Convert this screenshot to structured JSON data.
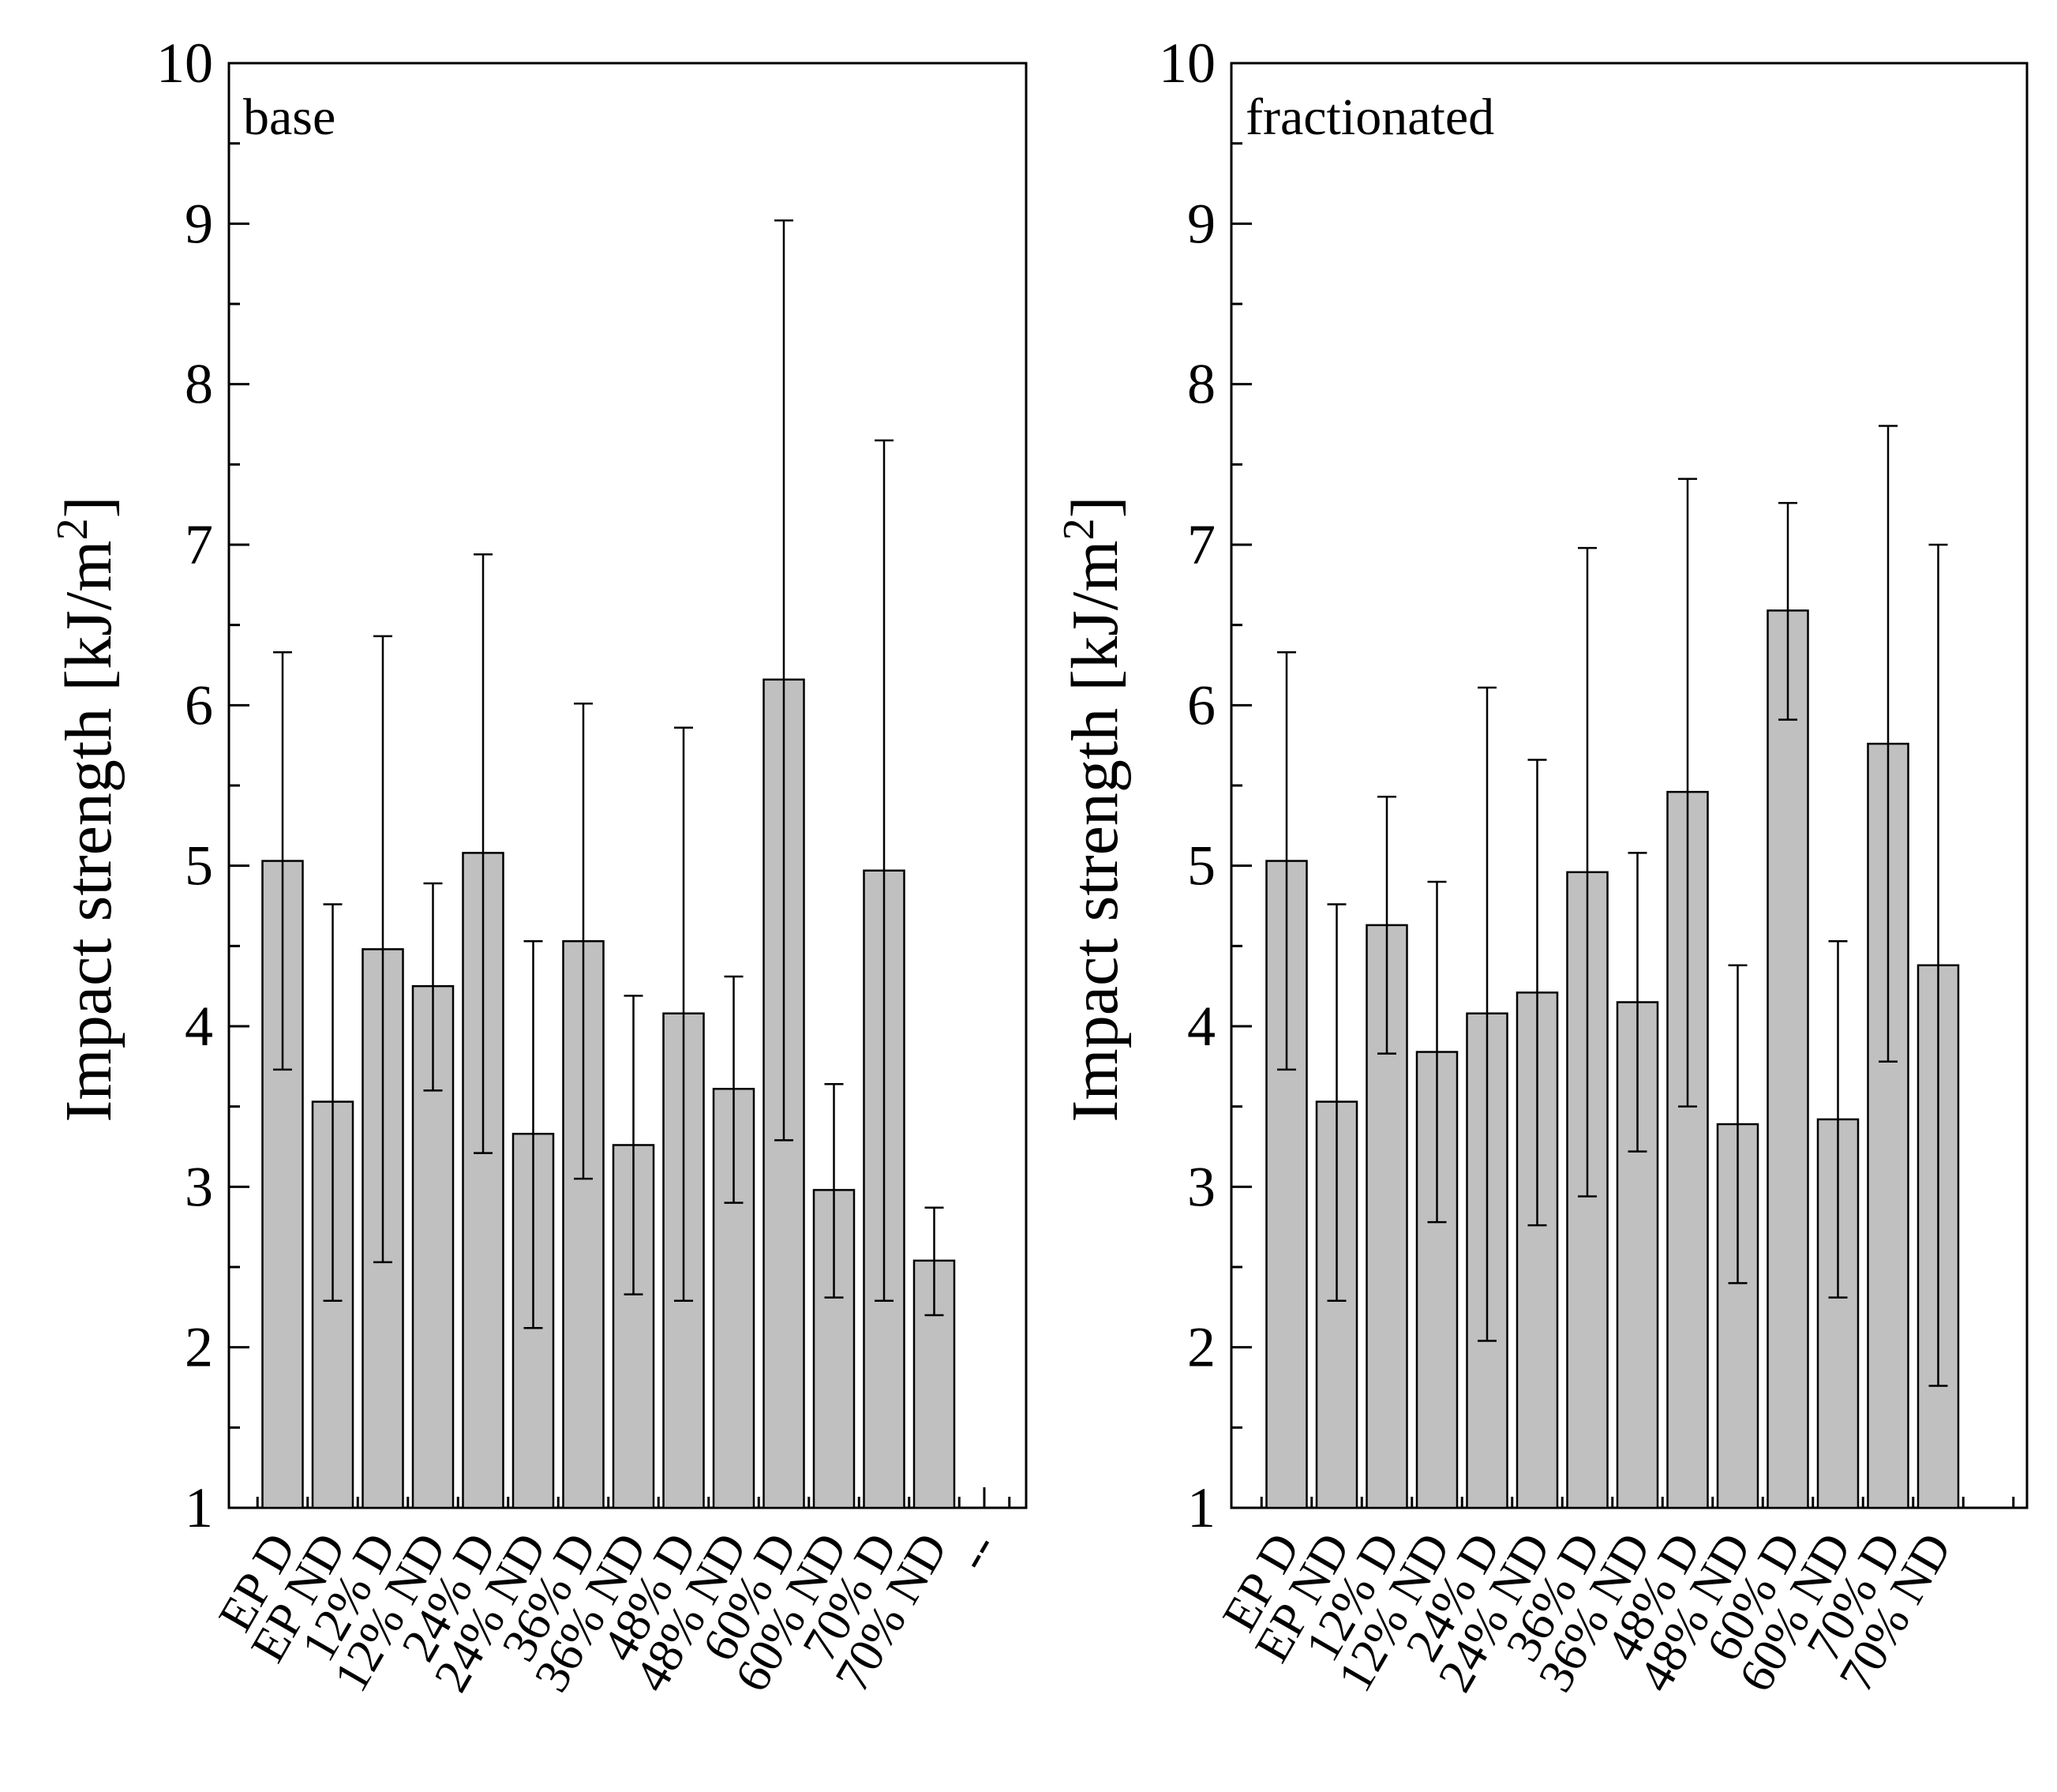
{
  "chart_data": [
    {
      "type": "bar",
      "panel_label": "base",
      "ylabel": "Impact strength [kJ/m",
      "ylabel_superscript": "2",
      "ylabel_close": "]",
      "ylim": [
        1,
        10
      ],
      "yticks": [
        "1",
        "2",
        "3",
        "4",
        "5",
        "6",
        "7",
        "8",
        "9",
        "10"
      ],
      "categories": [
        "EP D",
        "EP ND",
        "12% D",
        "12% ND",
        "24% D",
        "24% ND",
        "36% D",
        "36% ND",
        "48% D",
        "48% ND",
        "60% D",
        "60% ND",
        "70% D",
        "70% ND",
        "--"
      ],
      "values": [
        5.03,
        3.53,
        4.48,
        4.25,
        5.08,
        3.33,
        4.53,
        3.26,
        4.08,
        3.61,
        6.16,
        2.98,
        4.97,
        2.54,
        null
      ],
      "err_low": [
        3.73,
        2.29,
        2.53,
        3.6,
        3.21,
        2.12,
        3.05,
        2.33,
        2.29,
        2.9,
        3.29,
        2.31,
        2.29,
        2.2,
        null
      ],
      "err_high": [
        6.33,
        4.76,
        6.43,
        4.89,
        6.94,
        4.53,
        6.01,
        4.19,
        5.86,
        4.31,
        9.02,
        3.64,
        7.65,
        2.87,
        null
      ]
    },
    {
      "type": "bar",
      "panel_label": "fractionated",
      "ylabel": "Impact strength [kJ/m",
      "ylabel_superscript": "2",
      "ylabel_close": "]",
      "ylim": [
        1,
        10
      ],
      "yticks": [
        "1",
        "2",
        "3",
        "4",
        "5",
        "6",
        "7",
        "8",
        "9",
        "10"
      ],
      "categories": [
        "EP D",
        "EP ND",
        "12% D",
        "12% ND",
        "24% D",
        "24% ND",
        "36% D",
        "36% ND",
        "48% D",
        "48% ND",
        "60% D",
        "60% ND",
        "70% D",
        "70% ND"
      ],
      "values": [
        5.03,
        3.53,
        4.63,
        3.84,
        4.08,
        4.21,
        4.96,
        4.15,
        5.46,
        3.39,
        6.59,
        3.42,
        5.76,
        4.38
      ],
      "err_low": [
        3.73,
        2.29,
        3.83,
        2.78,
        2.04,
        2.76,
        2.94,
        3.22,
        3.5,
        2.4,
        5.91,
        2.31,
        3.78,
        1.76
      ],
      "err_high": [
        6.33,
        4.76,
        5.43,
        4.9,
        6.11,
        5.66,
        6.98,
        5.08,
        7.41,
        4.38,
        7.26,
        4.53,
        7.74,
        7.0
      ]
    }
  ]
}
